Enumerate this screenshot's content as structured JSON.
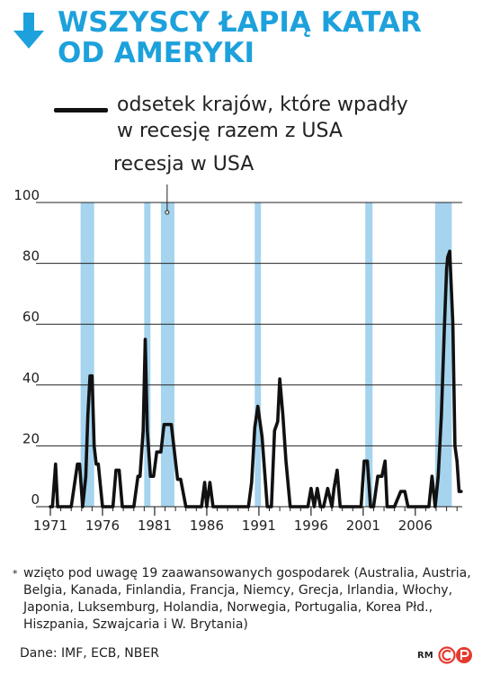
{
  "header": {
    "title_line1": "WSZYSCY ŁAPIĄ KATAR",
    "title_line2": "OD AMERYKI"
  },
  "legend": {
    "line_label_1": "odsetek krajów, które wpadły",
    "line_label_2": "w recesję razem z USA",
    "recession_label": "recesja w USA"
  },
  "footer": {
    "footnote_star": "*",
    "footnote": "wzięto pod uwagę 19 zaawansowanych gospodarek (Australia, Austria, Belgia, Kanada, Finlandia, Francja, Niemcy, Grecja, Irlandia, Włochy, Japonia, Luksemburg, Holandia, Norwegia, Portugalia, Korea Płd., Hiszpania, Szwajcaria i W. Brytania)",
    "source": "Dane: IMF, ECB, NBER",
    "credit": "RM"
  },
  "colors": {
    "title": "#1da1dc",
    "recession_band": "#a6d4ef",
    "line": "#111111",
    "grid": "#222222",
    "logo": "#e53a2e"
  },
  "chart_data": {
    "type": "line",
    "title": "WSZYSCY ŁAPIĄ KATAR OD AMERYKI",
    "xlim": [
      1971,
      2010.5
    ],
    "ylim": [
      0,
      100
    ],
    "x_ticks": [
      1971,
      1976,
      1981,
      1986,
      1991,
      1996,
      2001,
      2006
    ],
    "y_ticks": [
      0,
      20,
      40,
      60,
      80,
      100
    ],
    "grid": true,
    "series": [
      {
        "name": "odsetek krajów, które wpadły w recesję razem z USA",
        "x": [
          1971.0,
          1971.2,
          1971.5,
          1971.7,
          1972.0,
          1972.5,
          1973.0,
          1973.6,
          1973.8,
          1974.1,
          1974.4,
          1974.6,
          1974.8,
          1975.0,
          1975.2,
          1975.4,
          1975.6,
          1976.0,
          1976.4,
          1977.0,
          1977.3,
          1977.6,
          1977.9,
          1978.2,
          1979.0,
          1979.4,
          1979.6,
          1979.9,
          1980.1,
          1980.3,
          1980.6,
          1980.9,
          1981.2,
          1981.6,
          1981.9,
          1982.4,
          1982.6,
          1982.9,
          1983.2,
          1983.5,
          1984.0,
          1985.5,
          1985.8,
          1986.0,
          1986.3,
          1986.6,
          1986.9,
          1987.5,
          1989.0,
          1990.0,
          1990.3,
          1990.6,
          1990.9,
          1991.3,
          1991.8,
          1992.2,
          1992.5,
          1992.8,
          1993.0,
          1993.3,
          1993.6,
          1994.0,
          1994.3,
          1995.0,
          1995.7,
          1996.0,
          1996.3,
          1996.6,
          1996.9,
          1997.2,
          1997.6,
          1998.0,
          1998.2,
          1998.5,
          1998.8,
          1999.1,
          2000.2,
          2000.8,
          2001.1,
          2001.4,
          2001.7,
          2002.0,
          2002.4,
          2002.8,
          2003.1,
          2003.3,
          2003.6,
          2004.0,
          2004.6,
          2005.0,
          2005.3,
          2005.7,
          2006.5,
          2007.3,
          2007.6,
          2007.9,
          2008.2,
          2008.5,
          2008.8,
          2009.0,
          2009.1,
          2009.3,
          2009.6,
          2009.8,
          2010.0,
          2010.2,
          2010.4
        ],
        "y": [
          0,
          0,
          14,
          0,
          0,
          0,
          0,
          14,
          14,
          0,
          10,
          30,
          43,
          43,
          20,
          14,
          14,
          0,
          0,
          0,
          12,
          12,
          0,
          0,
          0,
          10,
          10,
          25,
          55,
          25,
          10,
          10,
          18,
          18,
          27,
          27,
          27,
          18,
          9,
          9,
          0,
          0,
          8,
          0,
          8,
          0,
          0,
          0,
          0,
          0,
          8,
          26,
          33,
          23,
          0,
          0,
          25,
          28,
          42,
          30,
          15,
          0,
          0,
          0,
          0,
          6,
          0,
          6,
          0,
          0,
          6,
          0,
          6,
          12,
          0,
          0,
          0,
          0,
          15,
          15,
          0,
          0,
          10,
          10,
          15,
          0,
          0,
          0,
          5,
          5,
          0,
          0,
          0,
          0,
          10,
          0,
          10,
          30,
          60,
          78,
          82,
          84,
          60,
          20,
          15,
          5,
          5
        ]
      }
    ],
    "recession_bands": [
      [
        1973.9,
        1975.2
      ],
      [
        1980.0,
        1980.6
      ],
      [
        1981.6,
        1982.9
      ],
      [
        1990.6,
        1991.2
      ],
      [
        2001.2,
        2001.9
      ],
      [
        2007.9,
        2009.5
      ]
    ]
  }
}
